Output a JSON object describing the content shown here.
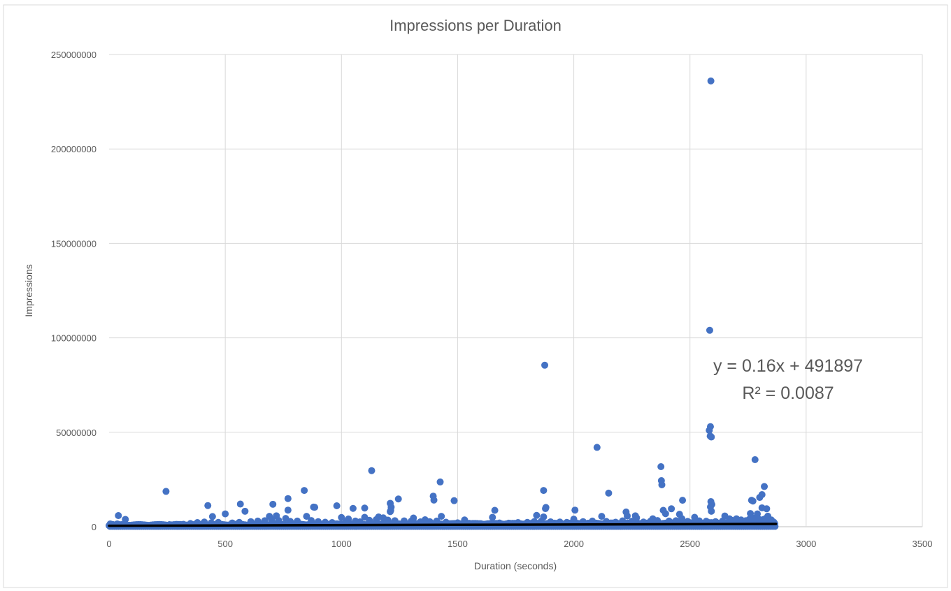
{
  "chart_data": {
    "type": "scatter",
    "title": "Impressions per Duration",
    "xlabel": "Duration (seconds)",
    "ylabel": "Impressions",
    "xlim": [
      0,
      3500
    ],
    "ylim": [
      0,
      250000000
    ],
    "xticks": [
      "0",
      "500",
      "1000",
      "1500",
      "2000",
      "2500",
      "3000",
      "3500"
    ],
    "yticks": [
      "0",
      "50000000",
      "100000000",
      "150000000",
      "200000000",
      "250000000"
    ],
    "grid": true,
    "legend": "none",
    "marker_color": "#4472C4",
    "trendline": {
      "type": "linear",
      "color": "#000000",
      "slope": 0.16,
      "intercept": 491897,
      "x_range": [
        0,
        2870
      ],
      "equation": "y = 0.16x + 491897",
      "r_squared": "R² = 0.0087"
    },
    "series": [
      {
        "points": [
          [
            2590,
            236000000
          ],
          [
            2585,
            104000000
          ],
          [
            1875,
            85500000
          ],
          [
            2588,
            53000000
          ],
          [
            2583,
            51000000
          ],
          [
            2587,
            48000000
          ],
          [
            2592,
            47500000
          ],
          [
            2100,
            42000000
          ],
          [
            2780,
            35500000
          ],
          [
            2375,
            31800000
          ],
          [
            1130,
            29700000
          ],
          [
            2377,
            24400000
          ],
          [
            2379,
            22200000
          ],
          [
            1425,
            23700000
          ],
          [
            2820,
            21300000
          ],
          [
            840,
            19200000
          ],
          [
            245,
            18700000
          ],
          [
            1870,
            19200000
          ],
          [
            2150,
            17800000
          ],
          [
            2810,
            17000000
          ],
          [
            2800,
            15500000
          ],
          [
            1395,
            16200000
          ],
          [
            1398,
            14100000
          ],
          [
            1485,
            13800000
          ],
          [
            1245,
            14700000
          ],
          [
            770,
            14900000
          ],
          [
            2468,
            14000000
          ],
          [
            2765,
            14000000
          ],
          [
            2771,
            13600000
          ],
          [
            2590,
            13300000
          ],
          [
            2594,
            11800000
          ],
          [
            2588,
            10500000
          ],
          [
            2592,
            8200000
          ],
          [
            1210,
            12400000
          ],
          [
            1214,
            10400000
          ],
          [
            1212,
            8600000
          ],
          [
            565,
            12000000
          ],
          [
            705,
            11900000
          ],
          [
            425,
            11200000
          ],
          [
            980,
            11100000
          ],
          [
            880,
            10400000
          ],
          [
            885,
            10300000
          ],
          [
            1050,
            9700000
          ],
          [
            1100,
            9900000
          ],
          [
            1880,
            10200000
          ],
          [
            1878,
            9600000
          ],
          [
            2420,
            9500000
          ],
          [
            2385,
            8700000
          ],
          [
            2810,
            10000000
          ],
          [
            2830,
            9500000
          ],
          [
            585,
            8200000
          ],
          [
            770,
            8800000
          ],
          [
            2005,
            8800000
          ],
          [
            1660,
            8700000
          ],
          [
            1210,
            8000000
          ],
          [
            40,
            5900000
          ],
          [
            70,
            3900000
          ],
          [
            445,
            5400000
          ],
          [
            500,
            6800000
          ],
          [
            690,
            5500000
          ],
          [
            720,
            5800000
          ],
          [
            760,
            4400000
          ],
          [
            850,
            5500000
          ],
          [
            1000,
            4900000
          ],
          [
            1030,
            4100000
          ],
          [
            1100,
            5000000
          ],
          [
            1160,
            5200000
          ],
          [
            1180,
            4700000
          ],
          [
            1310,
            4600000
          ],
          [
            1360,
            3700000
          ],
          [
            1430,
            5500000
          ],
          [
            1530,
            3600000
          ],
          [
            1650,
            5000000
          ],
          [
            1840,
            6000000
          ],
          [
            1870,
            5200000
          ],
          [
            2000,
            4000000
          ],
          [
            2120,
            5500000
          ],
          [
            2225,
            7800000
          ],
          [
            2230,
            5700000
          ],
          [
            2265,
            5800000
          ],
          [
            2270,
            4700000
          ],
          [
            2340,
            4200000
          ],
          [
            2395,
            6900000
          ],
          [
            2455,
            6600000
          ],
          [
            2465,
            4300000
          ],
          [
            2520,
            5000000
          ],
          [
            2650,
            5700000
          ],
          [
            2670,
            4200000
          ],
          [
            2700,
            4200000
          ],
          [
            2760,
            7000000
          ],
          [
            2790,
            6800000
          ],
          [
            2835,
            5600000
          ],
          [
            2850,
            3600000
          ],
          [
            2860,
            2500000
          ],
          [
            5,
            1500000
          ],
          [
            15,
            1200000
          ],
          [
            25,
            900000
          ],
          [
            35,
            1500000
          ],
          [
            55,
            1100000
          ],
          [
            85,
            800000
          ],
          [
            110,
            700000
          ],
          [
            140,
            900000
          ],
          [
            170,
            700000
          ],
          [
            200,
            800000
          ],
          [
            230,
            900000
          ],
          [
            260,
            1100000
          ],
          [
            290,
            1200000
          ],
          [
            320,
            1300000
          ],
          [
            350,
            1700000
          ],
          [
            380,
            2200000
          ],
          [
            410,
            2500000
          ],
          [
            440,
            2100000
          ],
          [
            470,
            2300000
          ],
          [
            530,
            2000000
          ],
          [
            560,
            2300000
          ],
          [
            610,
            2700000
          ],
          [
            640,
            3000000
          ],
          [
            670,
            3200000
          ],
          [
            700,
            3700000
          ],
          [
            730,
            3300000
          ],
          [
            780,
            2800000
          ],
          [
            810,
            3000000
          ],
          [
            870,
            3300000
          ],
          [
            900,
            2700000
          ],
          [
            930,
            2400000
          ],
          [
            960,
            2200000
          ],
          [
            1020,
            2800000
          ],
          [
            1060,
            3000000
          ],
          [
            1080,
            2600000
          ],
          [
            1120,
            3400000
          ],
          [
            1150,
            3800000
          ],
          [
            1200,
            3500000
          ],
          [
            1230,
            3200000
          ],
          [
            1270,
            3100000
          ],
          [
            1300,
            2900000
          ],
          [
            1340,
            2600000
          ],
          [
            1380,
            2700000
          ],
          [
            1410,
            3000000
          ],
          [
            1450,
            2400000
          ],
          [
            1500,
            2100000
          ],
          [
            1550,
            1800000
          ],
          [
            1600,
            1600000
          ],
          [
            1680,
            2000000
          ],
          [
            1720,
            1900000
          ],
          [
            1760,
            2200000
          ],
          [
            1800,
            2300000
          ],
          [
            1830,
            2700000
          ],
          [
            1860,
            2900000
          ],
          [
            1900,
            2600000
          ],
          [
            1940,
            2500000
          ],
          [
            1970,
            2300000
          ],
          [
            2040,
            2700000
          ],
          [
            2080,
            3000000
          ],
          [
            2140,
            2800000
          ],
          [
            2180,
            2400000
          ],
          [
            2210,
            3100000
          ],
          [
            2250,
            2900000
          ],
          [
            2300,
            2500000
          ],
          [
            2330,
            2900000
          ],
          [
            2360,
            3300000
          ],
          [
            2410,
            3000000
          ],
          [
            2440,
            3200000
          ],
          [
            2490,
            2800000
          ],
          [
            2540,
            3100000
          ],
          [
            2570,
            2900000
          ],
          [
            2610,
            2700000
          ],
          [
            2640,
            3000000
          ],
          [
            2680,
            3400000
          ],
          [
            2720,
            3600000
          ],
          [
            2740,
            3200000
          ],
          [
            2755,
            3900000
          ],
          [
            2775,
            4500000
          ],
          [
            2795,
            4100000
          ],
          [
            2815,
            3800000
          ],
          [
            2825,
            4300000
          ],
          [
            2840,
            3000000
          ],
          [
            2855,
            2000000
          ],
          [
            2865,
            1600000
          ]
        ]
      }
    ]
  }
}
